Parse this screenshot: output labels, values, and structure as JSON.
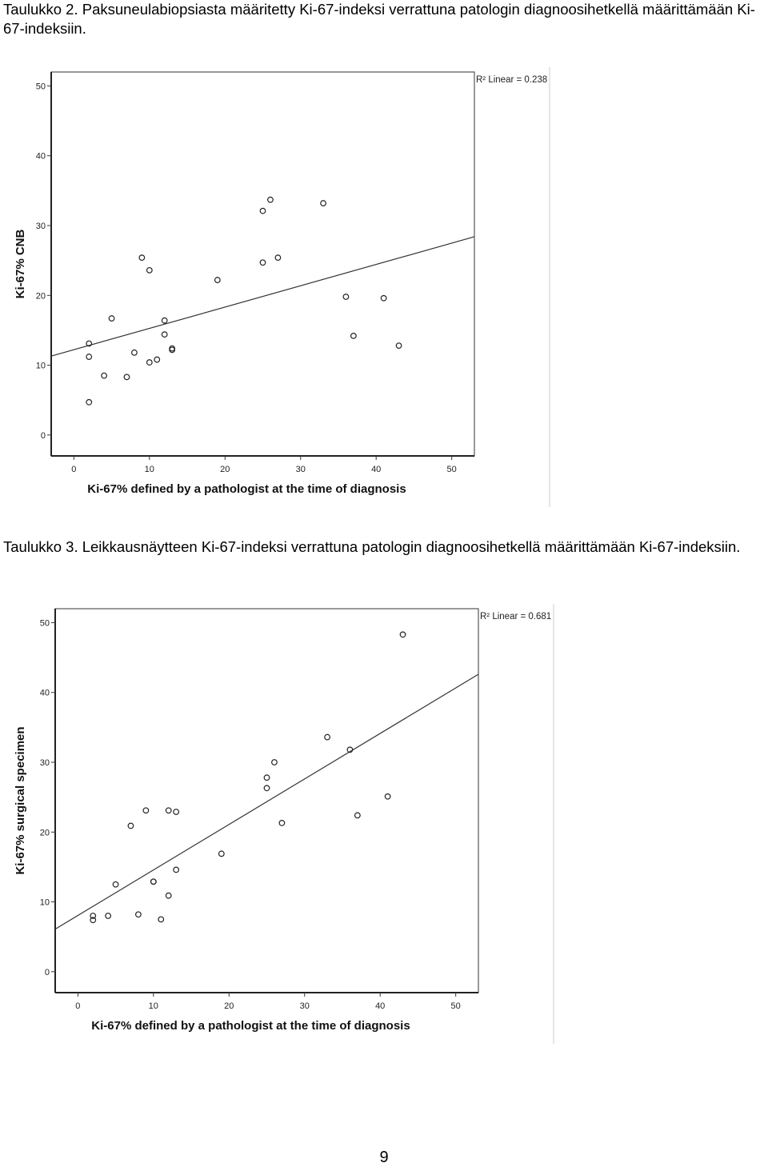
{
  "captions": {
    "table2": "Taulukko 2. Paksuneulabiopsiasta määritetty Ki-67-indeksi verrattuna patologin diagnoosihetkellä määrittämään Ki-67-indeksiin.",
    "table3": "Taulukko 3. Leikkausnäytteen Ki-67-indeksi verrattuna patologin diagnoosihetkellä määrittämään Ki-67-indeksiin."
  },
  "page_number": "9",
  "chart_data": [
    {
      "type": "scatter",
      "title": "",
      "xlabel": "Ki-67% defined by a pathologist at the time of diagnosis",
      "ylabel": "Ki-67% CNB",
      "xlim": [
        -3,
        53
      ],
      "ylim": [
        -3,
        52
      ],
      "xticks": [
        0,
        10,
        20,
        30,
        40,
        50
      ],
      "yticks": [
        0,
        10,
        20,
        30,
        40,
        50
      ],
      "r2_label": "R² Linear = 0.238",
      "fit_line": {
        "x": [
          -3,
          53
        ],
        "y": [
          11.3,
          28.4
        ]
      },
      "points": [
        {
          "x": 2,
          "y": 4.7
        },
        {
          "x": 2,
          "y": 11.2
        },
        {
          "x": 2,
          "y": 13.1
        },
        {
          "x": 4,
          "y": 8.5
        },
        {
          "x": 5,
          "y": 16.7
        },
        {
          "x": 7,
          "y": 8.3
        },
        {
          "x": 8,
          "y": 11.8
        },
        {
          "x": 9,
          "y": 25.4
        },
        {
          "x": 10,
          "y": 23.6
        },
        {
          "x": 10,
          "y": 10.4
        },
        {
          "x": 11,
          "y": 10.8
        },
        {
          "x": 12,
          "y": 16.4
        },
        {
          "x": 12,
          "y": 14.4
        },
        {
          "x": 13,
          "y": 12.4
        },
        {
          "x": 13,
          "y": 12.2
        },
        {
          "x": 19,
          "y": 22.2
        },
        {
          "x": 25,
          "y": 32.1
        },
        {
          "x": 25,
          "y": 24.7
        },
        {
          "x": 26,
          "y": 33.7
        },
        {
          "x": 27,
          "y": 25.4
        },
        {
          "x": 33,
          "y": 33.2
        },
        {
          "x": 36,
          "y": 19.8
        },
        {
          "x": 37,
          "y": 14.2
        },
        {
          "x": 41,
          "y": 19.6
        },
        {
          "x": 43,
          "y": 12.8
        }
      ]
    },
    {
      "type": "scatter",
      "title": "",
      "xlabel": "Ki-67% defined by a pathologist at the time of diagnosis",
      "ylabel": "Ki-67% surgical specimen",
      "xlim": [
        -3,
        53
      ],
      "ylim": [
        -3,
        52
      ],
      "xticks": [
        0,
        10,
        20,
        30,
        40,
        50
      ],
      "yticks": [
        0,
        10,
        20,
        30,
        40,
        50
      ],
      "r2_label": "R² Linear = 0.681",
      "fit_line": {
        "x": [
          -3,
          53
        ],
        "y": [
          6.1,
          42.6
        ]
      },
      "points": [
        {
          "x": 2,
          "y": 7.4
        },
        {
          "x": 2,
          "y": 8.0
        },
        {
          "x": 4,
          "y": 8.0
        },
        {
          "x": 5,
          "y": 12.5
        },
        {
          "x": 7,
          "y": 20.9
        },
        {
          "x": 8,
          "y": 8.2
        },
        {
          "x": 9,
          "y": 23.1
        },
        {
          "x": 10,
          "y": 12.9
        },
        {
          "x": 10,
          "y": 12.9
        },
        {
          "x": 11,
          "y": 7.5
        },
        {
          "x": 12,
          "y": 10.9
        },
        {
          "x": 12,
          "y": 23.1
        },
        {
          "x": 13,
          "y": 22.9
        },
        {
          "x": 13,
          "y": 14.6
        },
        {
          "x": 19,
          "y": 16.9
        },
        {
          "x": 25,
          "y": 26.3
        },
        {
          "x": 25,
          "y": 27.8
        },
        {
          "x": 26,
          "y": 30.0
        },
        {
          "x": 27,
          "y": 21.3
        },
        {
          "x": 33,
          "y": 33.6
        },
        {
          "x": 36,
          "y": 31.8
        },
        {
          "x": 37,
          "y": 22.4
        },
        {
          "x": 41,
          "y": 25.1
        },
        {
          "x": 43,
          "y": 48.3
        }
      ]
    }
  ]
}
